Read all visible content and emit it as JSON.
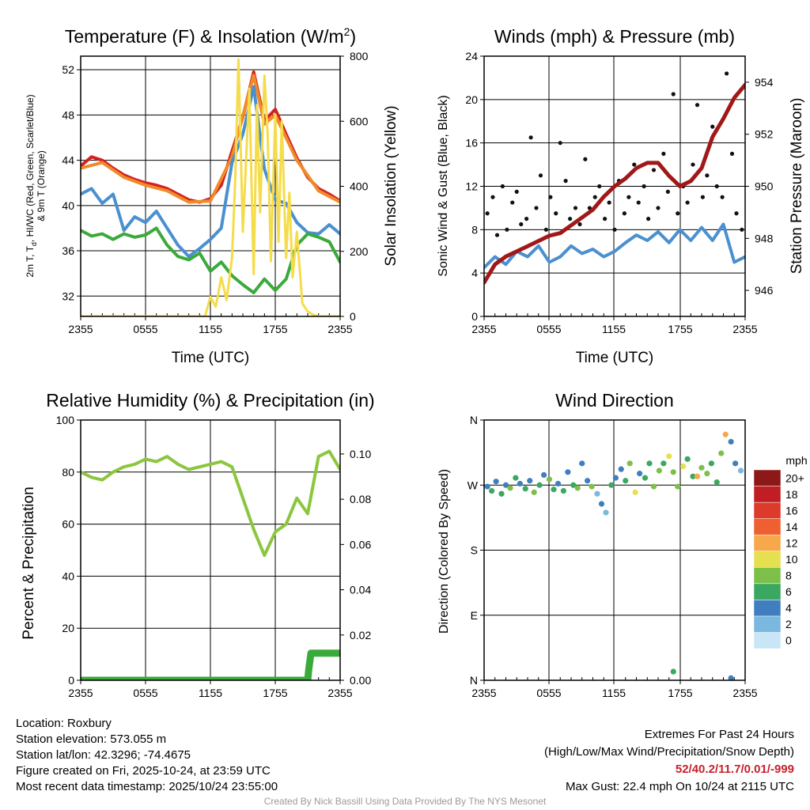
{
  "chart_data": [
    {
      "type": "line",
      "title": "Temperature (F) & Insolation (W/m",
      "title_sup": "2",
      "title_close": ")",
      "xlabel": "Time (UTC)",
      "ylabel_left_line1": "2m T, T",
      "ylabel_left_sub": "d",
      "ylabel_left_line1b": ", HI/WC (Red, Green, Scarlet/Blue)",
      "ylabel_left_line2": "& 9m T (Orange)",
      "ylabel_right": "Solar Insolation (Yellow)",
      "x_ticks": [
        "2355",
        "0555",
        "1155",
        "1755",
        "2355"
      ],
      "ylim_left": [
        30.2,
        53.2
      ],
      "yticks_left": [
        "32",
        "36",
        "40",
        "44",
        "48",
        "52"
      ],
      "ylim_right": [
        0,
        800
      ],
      "yticks_right": [
        "0",
        "200",
        "400",
        "600",
        "800"
      ],
      "series": [
        {
          "name": "Temperature 2m",
          "color": "#d42020",
          "axis": "left",
          "hours": [
            0,
            1,
            2,
            3,
            4,
            5,
            6,
            7,
            8,
            9,
            10,
            11,
            12,
            13,
            14,
            15,
            16,
            17,
            18,
            19,
            20,
            21,
            22,
            23,
            24
          ],
          "values": [
            43.5,
            44.3,
            44.0,
            43.3,
            42.7,
            42.3,
            42.0,
            41.8,
            41.5,
            41.0,
            40.5,
            40.3,
            40.6,
            41.8,
            44.8,
            47.8,
            51.8,
            47.5,
            48.5,
            46.3,
            44.2,
            42.5,
            41.5,
            41.0,
            40.4
          ]
        },
        {
          "name": "9m Temperature",
          "color": "#f08a2a",
          "axis": "left",
          "hours": [
            0,
            2,
            4,
            6,
            8,
            10,
            12,
            14,
            16,
            17,
            18,
            20,
            22,
            24
          ],
          "values": [
            43.3,
            43.8,
            42.5,
            41.8,
            41.3,
            40.3,
            40.4,
            44.3,
            51.5,
            47.2,
            48.0,
            44.0,
            41.3,
            40.3
          ]
        },
        {
          "name": "Wind Chill",
          "color": "#4a90d0",
          "axis": "left",
          "hours": [
            0,
            1,
            2,
            3,
            4,
            5,
            6,
            7,
            8,
            9,
            10,
            11,
            12,
            13,
            14,
            15,
            16,
            17,
            18,
            19,
            20,
            21,
            22,
            23,
            24
          ],
          "values": [
            41.0,
            41.5,
            40.2,
            41.0,
            37.8,
            39.0,
            38.5,
            39.5,
            38.0,
            36.5,
            35.5,
            36.2,
            37.0,
            38.0,
            43.8,
            46.3,
            50.5,
            43.2,
            40.5,
            40.2,
            38.5,
            37.6,
            37.5,
            38.3,
            37.5
          ]
        },
        {
          "name": "Dewpoint",
          "color": "#3aaa3a",
          "axis": "left",
          "hours": [
            0,
            1,
            2,
            3,
            4,
            5,
            6,
            7,
            8,
            9,
            10,
            11,
            12,
            13,
            14,
            15,
            16,
            17,
            18,
            19,
            20,
            21,
            22,
            23,
            24
          ],
          "values": [
            37.8,
            37.3,
            37.5,
            37.0,
            37.5,
            37.2,
            37.4,
            38.0,
            36.5,
            35.5,
            35.2,
            35.8,
            34.2,
            35.0,
            33.8,
            33.0,
            32.3,
            33.5,
            32.5,
            33.5,
            36.5,
            37.5,
            37.2,
            36.8,
            35.0
          ]
        },
        {
          "name": "Solar Insolation",
          "color": "#f5dc4a",
          "axis": "right",
          "hours": [
            0,
            11.5,
            12.0,
            12.5,
            13.0,
            13.5,
            14.0,
            14.3,
            14.6,
            15.0,
            15.3,
            15.6,
            16.0,
            16.3,
            16.6,
            17.0,
            17.3,
            17.6,
            18.0,
            18.3,
            18.6,
            19.0,
            19.3,
            19.6,
            20.0,
            20.5,
            21.0,
            21.5,
            22.0,
            24
          ],
          "values": [
            0,
            0,
            60,
            30,
            120,
            50,
            180,
            420,
            790,
            260,
            480,
            700,
            130,
            650,
            320,
            740,
            560,
            170,
            620,
            230,
            600,
            180,
            380,
            120,
            260,
            40,
            15,
            5,
            0,
            0
          ]
        }
      ]
    },
    {
      "type": "line",
      "title": "Winds (mph) & Pressure (mb)",
      "xlabel": "Time (UTC)",
      "ylabel_left": "Sonic Wind & Gust (Blue, Black)",
      "ylabel_right": "Station Pressure (Maroon)",
      "x_ticks": [
        "2355",
        "0555",
        "1155",
        "1755",
        "2355"
      ],
      "ylim_left": [
        0,
        24
      ],
      "yticks_left": [
        "0",
        "4",
        "8",
        "12",
        "16",
        "20",
        "24"
      ],
      "ylim_right": [
        945.0,
        955.0
      ],
      "yticks_right": [
        "946",
        "948",
        "950",
        "952",
        "954"
      ],
      "series": [
        {
          "name": "Sonic Wind",
          "color": "#4a90d0",
          "axis": "left",
          "hours": [
            0,
            1,
            2,
            3,
            4,
            5,
            6,
            7,
            8,
            9,
            10,
            11,
            12,
            13,
            14,
            15,
            16,
            17,
            18,
            19,
            20,
            21,
            22,
            23,
            24
          ],
          "values": [
            4.5,
            5.5,
            4.8,
            6.0,
            5.5,
            6.5,
            5.0,
            5.5,
            6.5,
            5.8,
            6.2,
            5.5,
            6.0,
            6.8,
            7.5,
            7.0,
            7.8,
            6.8,
            8.0,
            7.0,
            8.2,
            7.0,
            8.5,
            5.0,
            5.5
          ]
        },
        {
          "name": "Gust",
          "color": "#111111",
          "axis": "left",
          "style": "dots",
          "hours": [
            0.3,
            0.8,
            1.2,
            1.7,
            2.1,
            2.6,
            3.0,
            3.4,
            3.9,
            4.3,
            4.8,
            5.2,
            5.7,
            6.1,
            6.6,
            7.0,
            7.5,
            7.9,
            8.4,
            8.8,
            9.3,
            9.7,
            10.2,
            10.6,
            11.1,
            11.5,
            12.0,
            12.4,
            12.9,
            13.3,
            13.8,
            14.2,
            14.7,
            15.1,
            15.6,
            16.0,
            16.5,
            16.9,
            17.4,
            17.8,
            18.3,
            18.7,
            19.2,
            19.6,
            20.1,
            20.5,
            21.0,
            21.4,
            21.9,
            22.3,
            22.8,
            23.2,
            23.7
          ],
          "values": [
            9.5,
            11.0,
            7.5,
            12.0,
            8.0,
            10.5,
            11.5,
            8.5,
            9.0,
            16.5,
            10.0,
            13.0,
            8.0,
            11.0,
            9.5,
            16.0,
            12.5,
            9.0,
            10.0,
            8.5,
            14.5,
            10.0,
            11.0,
            12.0,
            9.0,
            10.5,
            8.0,
            12.5,
            9.5,
            11.0,
            14.0,
            10.5,
            12.0,
            9.0,
            13.5,
            10.0,
            15.0,
            11.5,
            20.5,
            9.5,
            12.0,
            10.5,
            14.0,
            19.5,
            11.0,
            13.0,
            17.5,
            12.0,
            11.0,
            22.4,
            15.0,
            9.5,
            8.0
          ]
        },
        {
          "name": "Station Pressure",
          "color": "#a01818",
          "axis": "right",
          "hours": [
            0,
            1,
            2,
            3,
            4,
            5,
            6,
            7,
            8,
            9,
            10,
            11,
            12,
            13,
            14,
            15,
            16,
            17,
            18,
            19,
            20,
            21,
            22,
            23,
            24
          ],
          "values": [
            946.3,
            947.0,
            947.3,
            947.5,
            947.7,
            947.9,
            948.1,
            948.2,
            948.5,
            948.8,
            949.1,
            949.6,
            950.0,
            950.3,
            950.7,
            950.9,
            950.9,
            950.4,
            950.0,
            950.2,
            950.7,
            951.9,
            952.6,
            953.4,
            953.9
          ]
        }
      ]
    },
    {
      "type": "line",
      "title": "Relative Humidity (%) & Precipitation (in)",
      "xlabel": "",
      "ylabel_left": "Percent & Precipitation",
      "x_ticks": [
        "2355",
        "0555",
        "1155",
        "1755",
        "2355"
      ],
      "ylim_left": [
        0,
        100
      ],
      "yticks_left": [
        "0",
        "20",
        "40",
        "60",
        "80",
        "100"
      ],
      "ylim_right": [
        0,
        0.115
      ],
      "yticks_right": [
        "0.00",
        "0.02",
        "0.04",
        "0.06",
        "0.08",
        "0.10"
      ],
      "series": [
        {
          "name": "Relative Humidity",
          "color": "#8cc63e",
          "axis": "left",
          "hours": [
            0,
            1,
            2,
            3,
            4,
            5,
            6,
            7,
            8,
            9,
            10,
            11,
            12,
            13,
            14,
            15,
            16,
            17,
            18,
            19,
            20,
            21,
            22,
            23,
            24
          ],
          "values": [
            80,
            78,
            77,
            80,
            82,
            83,
            85,
            84,
            86,
            83,
            81,
            82,
            83,
            84,
            82,
            70,
            58,
            48,
            57,
            60,
            70,
            64,
            86,
            88,
            81
          ]
        },
        {
          "name": "Precipitation",
          "color": "#3aaa3a",
          "axis": "right",
          "hours": [
            0,
            21.0,
            21.1,
            21.3,
            22,
            23,
            24
          ],
          "values": [
            0,
            0,
            0.005,
            0.012,
            0.012,
            0.012,
            0.012
          ]
        }
      ]
    },
    {
      "type": "scatter",
      "title": "Wind Direction",
      "xlabel": "",
      "ylabel_left": "Direction (Colored By Speed)",
      "x_ticks": [
        "2355",
        "0555",
        "1155",
        "1755",
        "2355"
      ],
      "ylim_left": [
        0,
        360
      ],
      "yticks_left": [
        "N",
        "E",
        "S",
        "W",
        "N"
      ],
      "colorbar_title": "mph",
      "colorbar_labels": [
        "0",
        "2",
        "4",
        "6",
        "8",
        "10",
        "12",
        "14",
        "16",
        "18",
        "20+"
      ],
      "colorbar_colors": [
        "#c8e6f6",
        "#7ab8e0",
        "#3f7fc0",
        "#3aa860",
        "#7cc04a",
        "#e6e050",
        "#f6a84a",
        "#ee6030",
        "#dc3a2a",
        "#c01e22",
        "#8c1818"
      ],
      "points_hours": [
        0.3,
        0.7,
        1.1,
        1.6,
        2.0,
        2.4,
        2.9,
        3.3,
        3.8,
        4.2,
        4.6,
        5.1,
        5.5,
        6.0,
        6.4,
        6.8,
        7.3,
        7.7,
        8.2,
        8.6,
        9.0,
        9.5,
        9.9,
        10.4,
        10.8,
        11.2,
        11.7,
        12.1,
        12.6,
        13.0,
        13.4,
        13.9,
        14.3,
        14.8,
        15.2,
        15.6,
        16.1,
        16.5,
        17.0,
        17.4,
        17.8,
        18.3,
        18.7,
        19.2,
        19.6,
        20.0,
        20.5,
        20.9,
        21.4,
        21.8,
        22.2,
        22.7,
        23.1,
        23.6,
        17.4,
        22.7
      ],
      "points_dir": [
        268,
        262,
        275,
        258,
        270,
        266,
        280,
        272,
        265,
        276,
        260,
        270,
        284,
        278,
        264,
        272,
        262,
        288,
        270,
        266,
        300,
        276,
        268,
        258,
        244,
        232,
        270,
        280,
        292,
        276,
        300,
        260,
        286,
        280,
        300,
        268,
        290,
        300,
        310,
        288,
        268,
        296,
        306,
        282,
        282,
        294,
        286,
        300,
        274,
        314,
        340,
        330,
        300,
        290,
        12,
        3
      ],
      "points_speed": [
        4,
        5,
        3,
        6,
        4,
        7,
        5,
        3,
        6,
        4,
        8,
        5,
        3,
        7,
        5,
        4,
        6,
        3,
        5,
        7,
        4,
        3,
        8,
        2,
        3,
        2,
        5,
        4,
        3,
        6,
        7,
        9,
        4,
        6,
        5,
        8,
        7,
        6,
        10,
        7,
        8,
        9,
        5,
        6,
        12,
        7,
        8,
        5,
        6,
        8,
        11,
        3,
        4,
        2,
        6,
        3
      ]
    }
  ],
  "footer": {
    "location": "Location: Roxbury",
    "elevation": "Station elevation: 573.055 m",
    "latlon": "Station lat/lon: 42.3296; -74.4675",
    "created": "Figure created on Fri, 2025-10-24, at 23:59 UTC",
    "recent": "Most recent data timestamp: 2025/10/24 23:55:00",
    "extremes_title": "Extremes For Past 24 Hours",
    "extremes_desc": "(High/Low/Max Wind/Precipitation/Snow Depth)",
    "extremes_values": "52/40.2/11.7/0.01/-999",
    "max_gust": "Max Gust: 22.4 mph On 10/24 at 2115 UTC",
    "credit": "Created By Nick Bassill Using Data Provided By The NYS Mesonet"
  }
}
